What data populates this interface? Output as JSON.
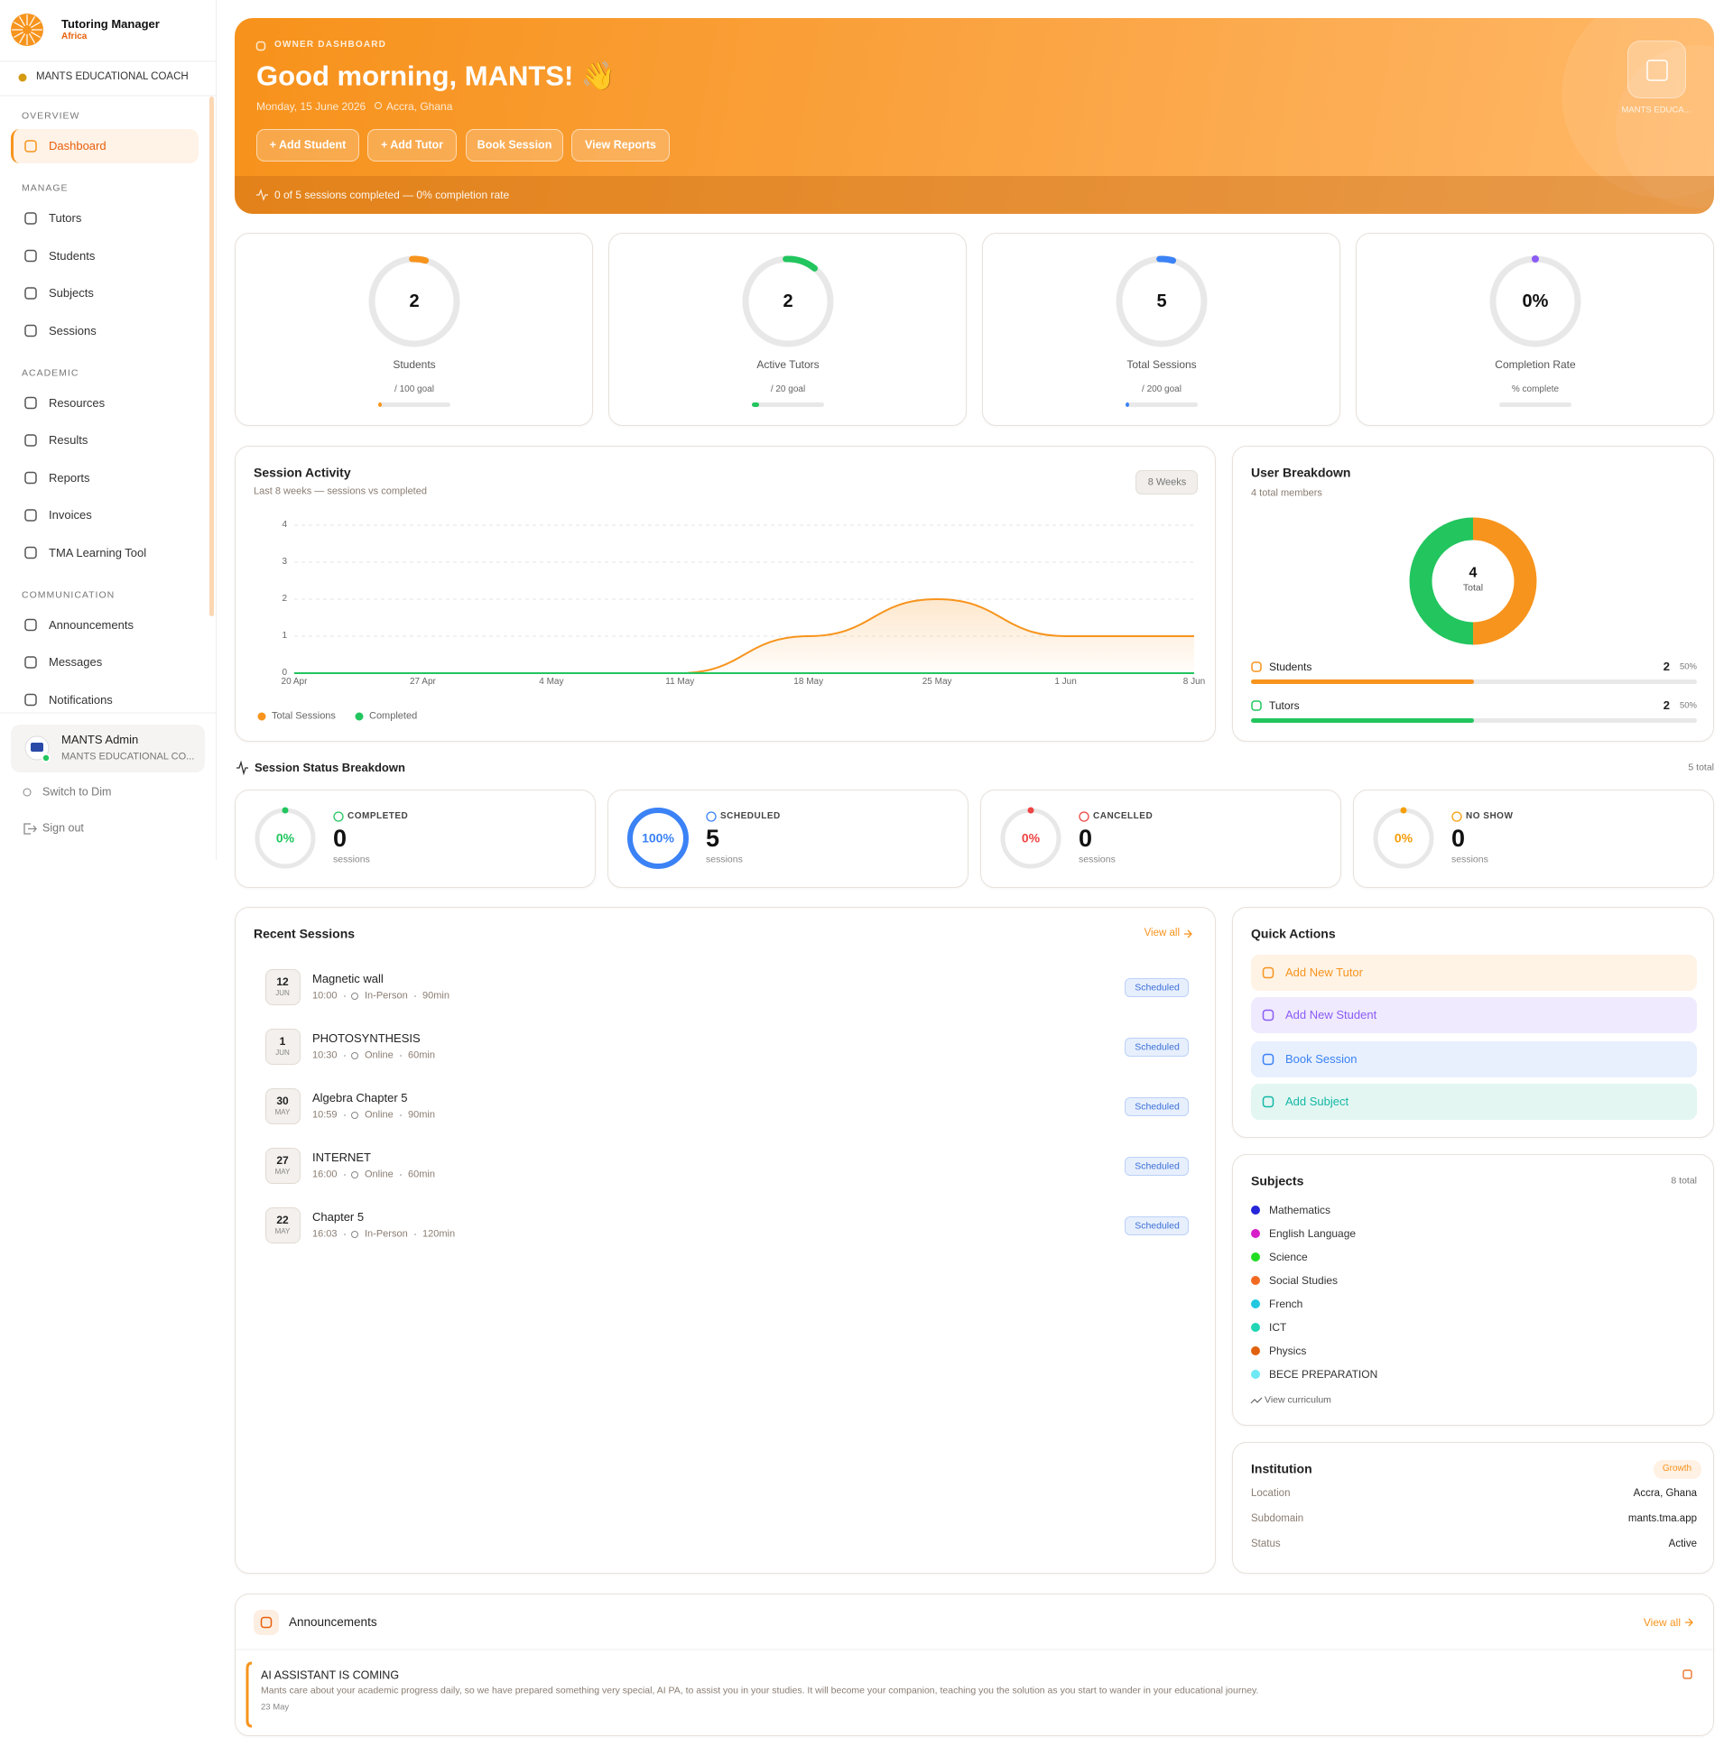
{
  "sidebar": {
    "brand": "Tutoring Manager",
    "brand_sub": "Africa",
    "organization": "MANTS EDUCATIONAL COACH",
    "sections": [
      {
        "title": "OVERVIEW",
        "items": [
          "Dashboard"
        ]
      },
      {
        "title": "MANAGE",
        "items": [
          "Tutors",
          "Students",
          "Subjects",
          "Sessions"
        ]
      },
      {
        "title": "ACADEMIC",
        "items": [
          "Resources",
          "Results",
          "Reports",
          "Invoices",
          "TMA Learning Tool"
        ]
      },
      {
        "title": "COMMUNICATION",
        "items": [
          "Announcements",
          "Messages",
          "Notifications"
        ]
      }
    ],
    "user": {
      "name": "MANTS Admin",
      "organization": "MANTS EDUCATIONAL CO..."
    },
    "theme_toggle": "Switch to Dim",
    "sign_out": "Sign out"
  },
  "hero": {
    "eyebrow": "OWNER DASHBOARD",
    "greeting": "Good morning, MANTS! 👋",
    "date": "Monday, 15 June 2026",
    "location": "Accra, Ghana",
    "actions": [
      "+ Add Student",
      "+ Add Tutor",
      "Book Session",
      "View Reports"
    ],
    "badge": "MANTS EDUCA...",
    "summary": "0 of 5 sessions completed — 0% completion rate"
  },
  "stats": [
    {
      "value": "2",
      "label": "Students",
      "goal": "/ 100 goal",
      "color": "#f7941d"
    },
    {
      "value": "2",
      "label": "Active Tutors",
      "goal": "/ 20 goal",
      "color": "#22c55e"
    },
    {
      "value": "5",
      "label": "Total Sessions",
      "goal": "/ 200 goal",
      "color": "#3b82f6"
    },
    {
      "value": "0%",
      "label": "Completion Rate",
      "goal": "% complete",
      "color": "#8b5cf6"
    }
  ],
  "chart_data": {
    "type": "line",
    "title": "Session Activity",
    "subtitle": "Last 8 weeks — sessions vs completed",
    "range_button": "8 Weeks",
    "categories": [
      "20 Apr",
      "27 Apr",
      "4 May",
      "11 May",
      "18 May",
      "25 May",
      "1 Jun",
      "8 Jun"
    ],
    "series": [
      {
        "name": "Total Sessions",
        "color": "#f7941d",
        "values": [
          0,
          0,
          0,
          0,
          1,
          2,
          1,
          1
        ]
      },
      {
        "name": "Completed",
        "color": "#22c55e",
        "values": [
          0,
          0,
          0,
          0,
          0,
          0,
          0,
          0
        ]
      }
    ],
    "ylim": [
      0,
      4
    ],
    "yticks": [
      0,
      1,
      2,
      3,
      4
    ],
    "grid": true
  },
  "user_breakdown": {
    "title": "User Breakdown",
    "subtitle": "4 total members",
    "total": 4,
    "total_label": "Total",
    "groups": [
      {
        "name": "Students",
        "count": 2,
        "percent": "50%",
        "color": "#f7941d"
      },
      {
        "name": "Tutors",
        "count": 2,
        "percent": "50%",
        "color": "#22c55e"
      }
    ]
  },
  "status_breakdown": {
    "title": "Session Status Breakdown",
    "total": "5 total",
    "unit": "sessions",
    "cards": [
      {
        "status": "COMPLETED",
        "percent": {
          "value": 0,
          "label": "0%"
        },
        "count": 0,
        "color": "#22c55e"
      },
      {
        "status": "SCHEDULED",
        "percent": {
          "value": 100,
          "label": "100%"
        },
        "count": 5,
        "color": "#3b82f6"
      },
      {
        "status": "CANCELLED",
        "percent": {
          "value": 0,
          "label": "0%"
        },
        "count": 0,
        "color": "#ef4444"
      },
      {
        "status": "NO SHOW",
        "percent": {
          "value": 0,
          "label": "0%"
        },
        "count": 0,
        "color": "#f59e0b"
      }
    ]
  },
  "recent_sessions": {
    "title": "Recent Sessions",
    "view_all": "View all",
    "rows": [
      {
        "day": "12",
        "month": "JUN",
        "title": "Magnetic wall",
        "time": "10:00",
        "mode": "In-Person",
        "duration": "90min",
        "status": "Scheduled"
      },
      {
        "day": "1",
        "month": "JUN",
        "title": "PHOTOSYNTHESIS",
        "time": "10:30",
        "mode": "Online",
        "duration": "60min",
        "status": "Scheduled"
      },
      {
        "day": "30",
        "month": "MAY",
        "title": "Algebra Chapter 5",
        "time": "10:59",
        "mode": "Online",
        "duration": "90min",
        "status": "Scheduled"
      },
      {
        "day": "27",
        "month": "MAY",
        "title": "INTERNET",
        "time": "16:00",
        "mode": "Online",
        "duration": "60min",
        "status": "Scheduled"
      },
      {
        "day": "22",
        "month": "MAY",
        "title": "Chapter 5",
        "time": "16:03",
        "mode": "In-Person",
        "duration": "120min",
        "status": "Scheduled"
      }
    ]
  },
  "quick_actions": {
    "title": "Quick Actions",
    "items": [
      {
        "label": "Add New Tutor",
        "color": "#f7941d",
        "background": "#fff3e6"
      },
      {
        "label": "Add New Student",
        "color": "#8b5cf6",
        "background": "#efeafd"
      },
      {
        "label": "Book Session",
        "color": "#3b82f6",
        "background": "#e8f0fd"
      },
      {
        "label": "Add Subject",
        "color": "#14b8a6",
        "background": "#e3f6f2"
      }
    ]
  },
  "subjects": {
    "title": "Subjects",
    "total": "8 total",
    "link": "View curriculum",
    "items": [
      {
        "name": "Mathematics",
        "color": "#2525d9"
      },
      {
        "name": "English Language",
        "color": "#d61fc8"
      },
      {
        "name": "Science",
        "color": "#22dd22"
      },
      {
        "name": "Social Studies",
        "color": "#f26a21"
      },
      {
        "name": "French",
        "color": "#22c7e0"
      },
      {
        "name": "ICT",
        "color": "#20d6b5"
      },
      {
        "name": "Physics",
        "color": "#e0620f"
      },
      {
        "name": "BECE PREPARATION",
        "color": "#6ee8f5"
      }
    ]
  },
  "institution": {
    "title": "Institution",
    "badge": "Growth",
    "rows": [
      [
        "Location",
        "Accra, Ghana"
      ],
      [
        "Subdomain",
        "mants.tma.app"
      ],
      [
        "Status",
        "Active"
      ]
    ]
  },
  "announcements": {
    "title": "Announcements",
    "view_all": "View all",
    "items": [
      {
        "title": "AI ASSISTANT IS COMING",
        "body": "Mants care about your academic progress daily, so we have prepared something very special, AI PA, to assist you in your studies. It will become your companion, teaching you the solution as you start to wander in your educational journey.",
        "date": "23 May"
      }
    ]
  }
}
